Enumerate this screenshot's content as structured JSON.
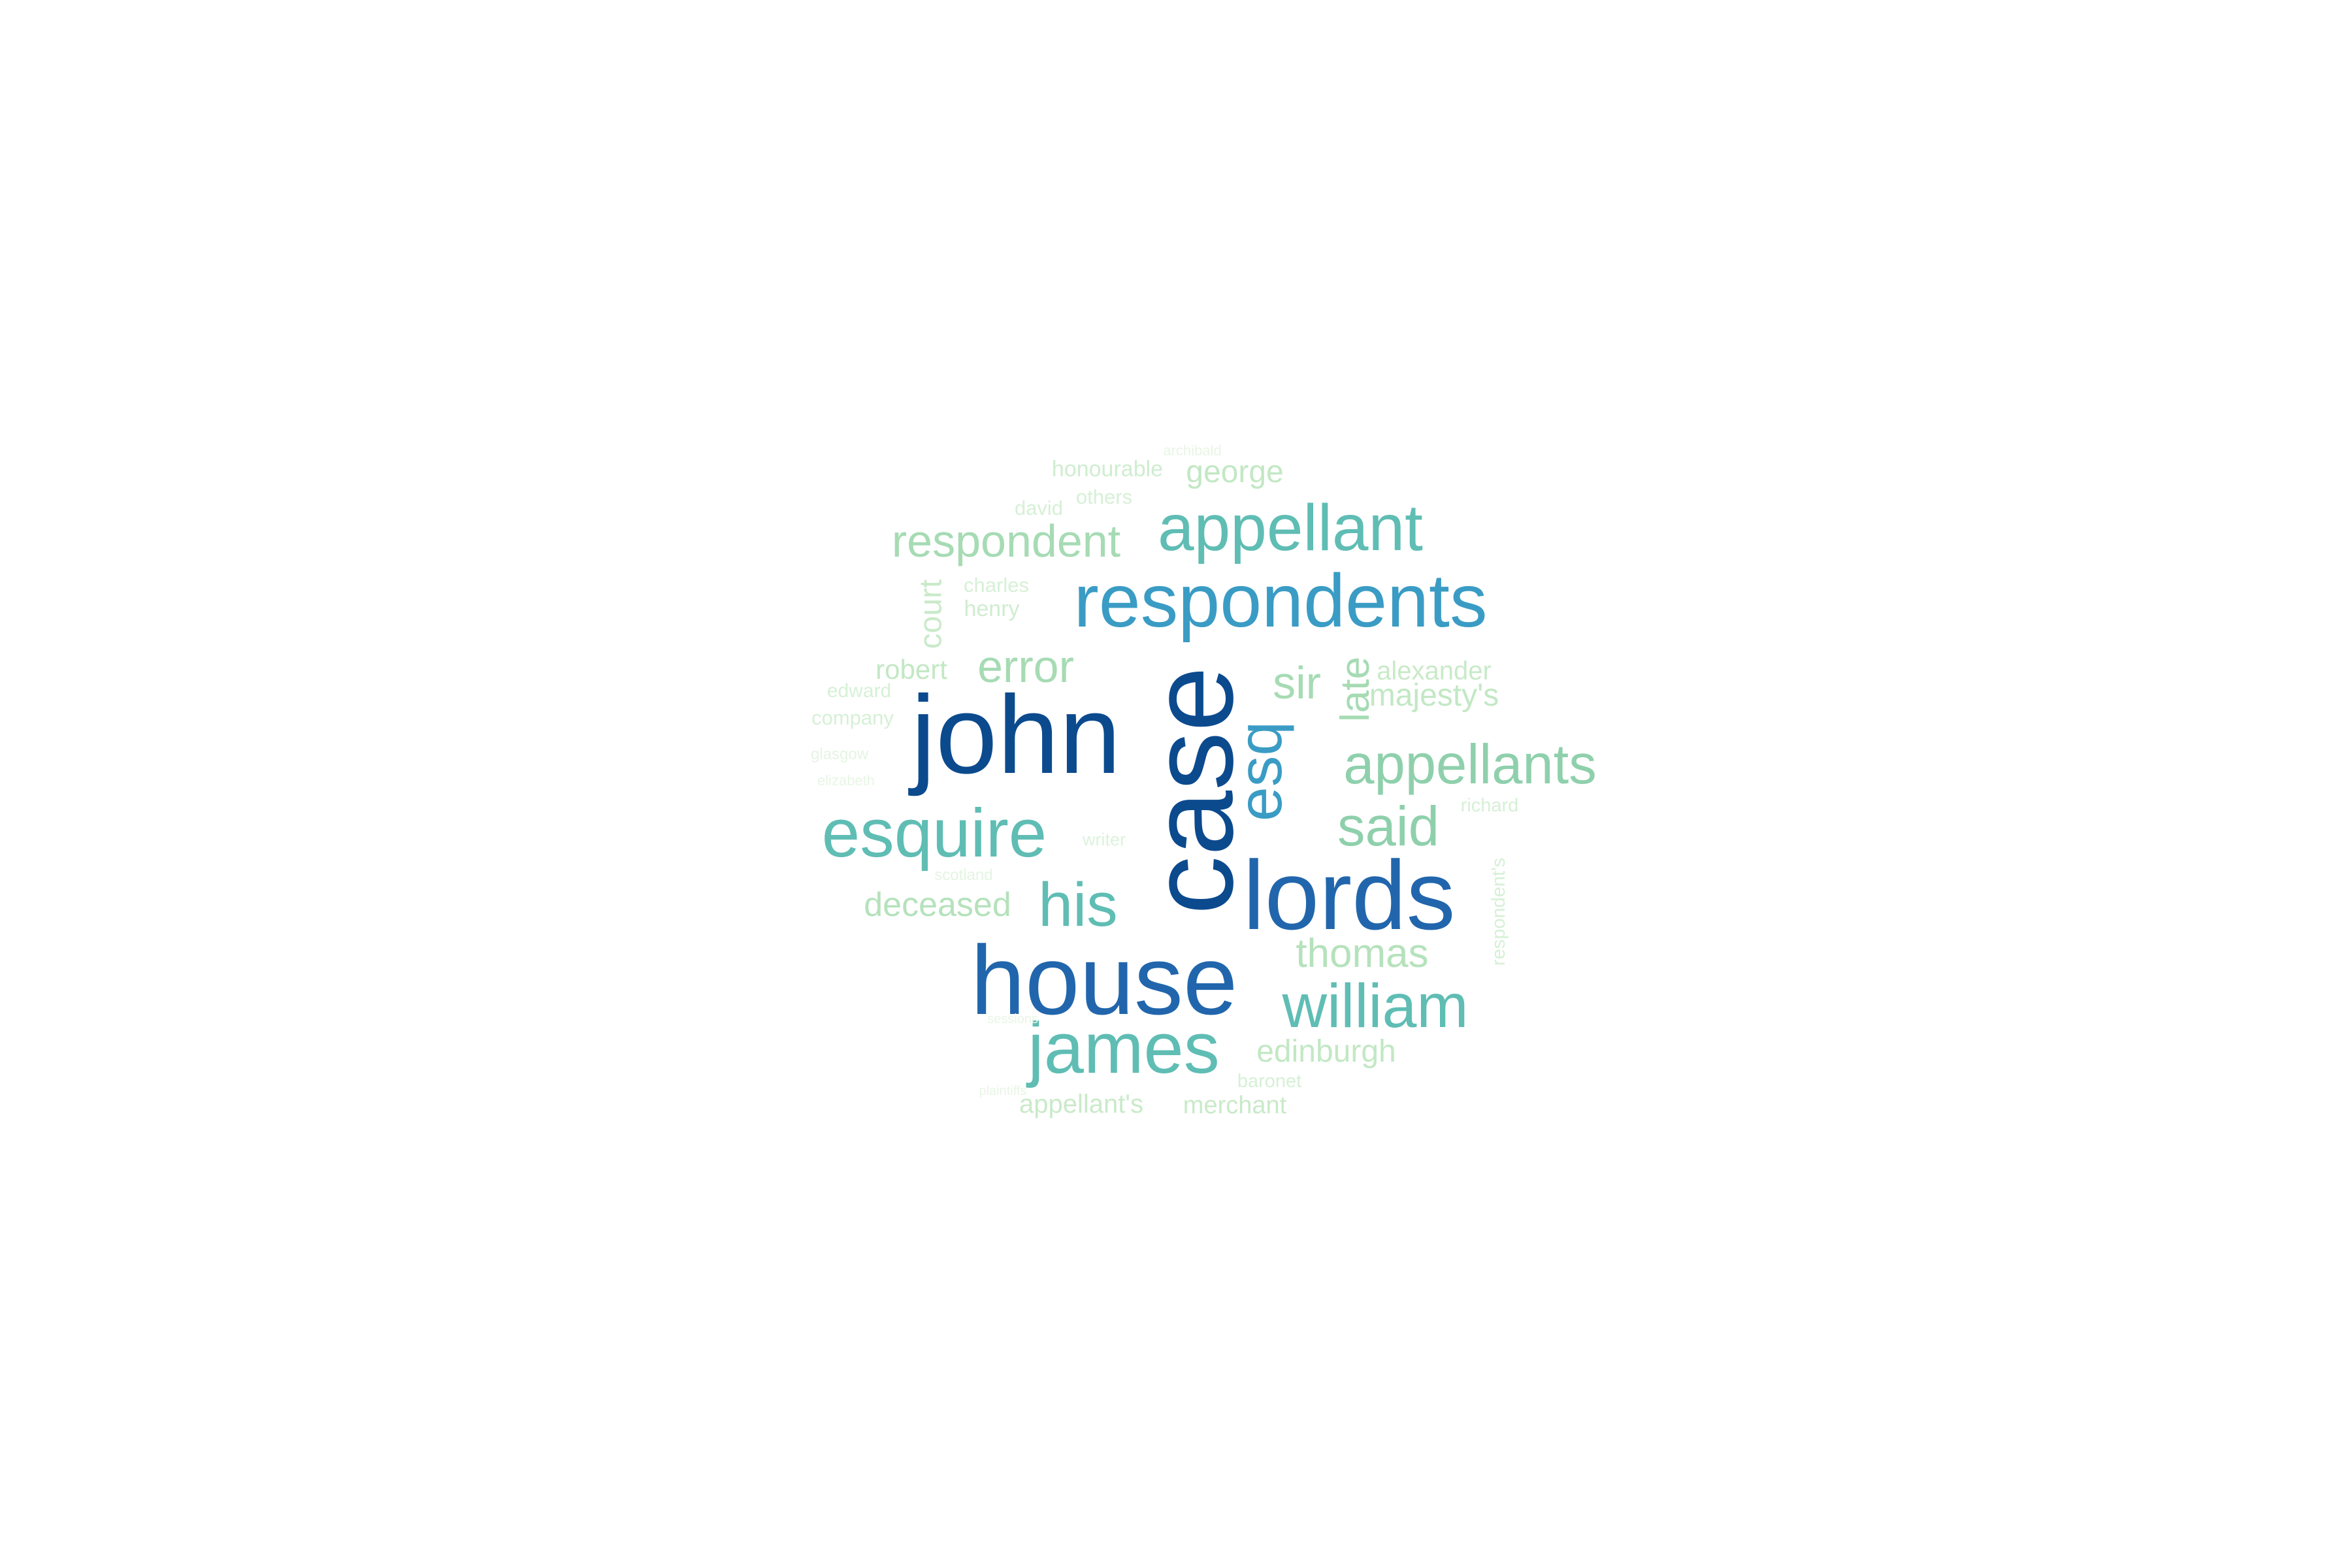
{
  "word_cloud": {
    "palette": {
      "darkest": "#0c4a8e",
      "dark": "#2166ac",
      "mid_blue": "#3a9cc4",
      "teal": "#5fbdb4",
      "light_green": "#a6dbb4",
      "pale_green": "#cfedd0",
      "faint_green": "#e8f6e4"
    },
    "words": [
      {
        "text": "john",
        "color": "#0c4a8e",
        "vertical": false
      },
      {
        "text": "case",
        "color": "#0c4a8e",
        "vertical": true
      },
      {
        "text": "house",
        "color": "#2166ac",
        "vertical": false
      },
      {
        "text": "lords",
        "color": "#2166ac",
        "vertical": false
      },
      {
        "text": "respondents",
        "color": "#3a9cc4",
        "vertical": false
      },
      {
        "text": "esq",
        "color": "#3a9cc4",
        "vertical": true
      },
      {
        "text": "esquire",
        "color": "#5fbdb4",
        "vertical": false
      },
      {
        "text": "appellant",
        "color": "#5fbdb4",
        "vertical": false
      },
      {
        "text": "william",
        "color": "#5fbdb4",
        "vertical": false
      },
      {
        "text": "james",
        "color": "#5fbdb4",
        "vertical": false
      },
      {
        "text": "his",
        "color": "#5fbdb4",
        "vertical": false
      },
      {
        "text": "appellants",
        "color": "#8fd0ac",
        "vertical": false
      },
      {
        "text": "said",
        "color": "#8fd0ac",
        "vertical": false
      },
      {
        "text": "respondent",
        "color": "#a6dbb4",
        "vertical": false
      },
      {
        "text": "error",
        "color": "#a6dbb4",
        "vertical": false
      },
      {
        "text": "sir",
        "color": "#a6dbb4",
        "vertical": false
      },
      {
        "text": "late",
        "color": "#a6dbb4",
        "vertical": true
      },
      {
        "text": "thomas",
        "color": "#b5e2bc",
        "vertical": false
      },
      {
        "text": "deceased",
        "color": "#b5e2bc",
        "vertical": false
      },
      {
        "text": "edinburgh",
        "color": "#c2e8c4",
        "vertical": false
      },
      {
        "text": "majesty's",
        "color": "#c2e8c4",
        "vertical": false
      },
      {
        "text": "george",
        "color": "#c2e8c4",
        "vertical": false
      },
      {
        "text": "robert",
        "color": "#c2e8c4",
        "vertical": false
      },
      {
        "text": "alexander",
        "color": "#c9eac9",
        "vertical": false
      },
      {
        "text": "court",
        "color": "#c9eac9",
        "vertical": true
      },
      {
        "text": "appellant's",
        "color": "#c9eac9",
        "vertical": false
      },
      {
        "text": "merchant",
        "color": "#c9eac9",
        "vertical": false
      },
      {
        "text": "honourable",
        "color": "#cfedd0",
        "vertical": false
      },
      {
        "text": "henry",
        "color": "#cfedd0",
        "vertical": false
      },
      {
        "text": "charles",
        "color": "#d6f0d6",
        "vertical": false
      },
      {
        "text": "others",
        "color": "#d6f0d6",
        "vertical": false
      },
      {
        "text": "david",
        "color": "#d6f0d6",
        "vertical": false
      },
      {
        "text": "company",
        "color": "#d6f0d6",
        "vertical": false
      },
      {
        "text": "edward",
        "color": "#d6f0d6",
        "vertical": false
      },
      {
        "text": "baronet",
        "color": "#d6f0d6",
        "vertical": false
      },
      {
        "text": "respondent's",
        "color": "#d6f0d6",
        "vertical": true
      },
      {
        "text": "richard",
        "color": "#d6f0d6",
        "vertical": false
      },
      {
        "text": "writer",
        "color": "#dcf2dc",
        "vertical": false
      },
      {
        "text": "glasgow",
        "color": "#e4f5e2",
        "vertical": false
      },
      {
        "text": "scotland",
        "color": "#e4f5e2",
        "vertical": false
      },
      {
        "text": "archibald",
        "color": "#e8f6e4",
        "vertical": false
      },
      {
        "text": "elizabeth",
        "color": "#e8f6e4",
        "vertical": false
      },
      {
        "text": "sessions",
        "color": "#e8f6e4",
        "vertical": false
      },
      {
        "text": "plaintiffs",
        "color": "#e8f6e4",
        "vertical": false
      }
    ]
  }
}
